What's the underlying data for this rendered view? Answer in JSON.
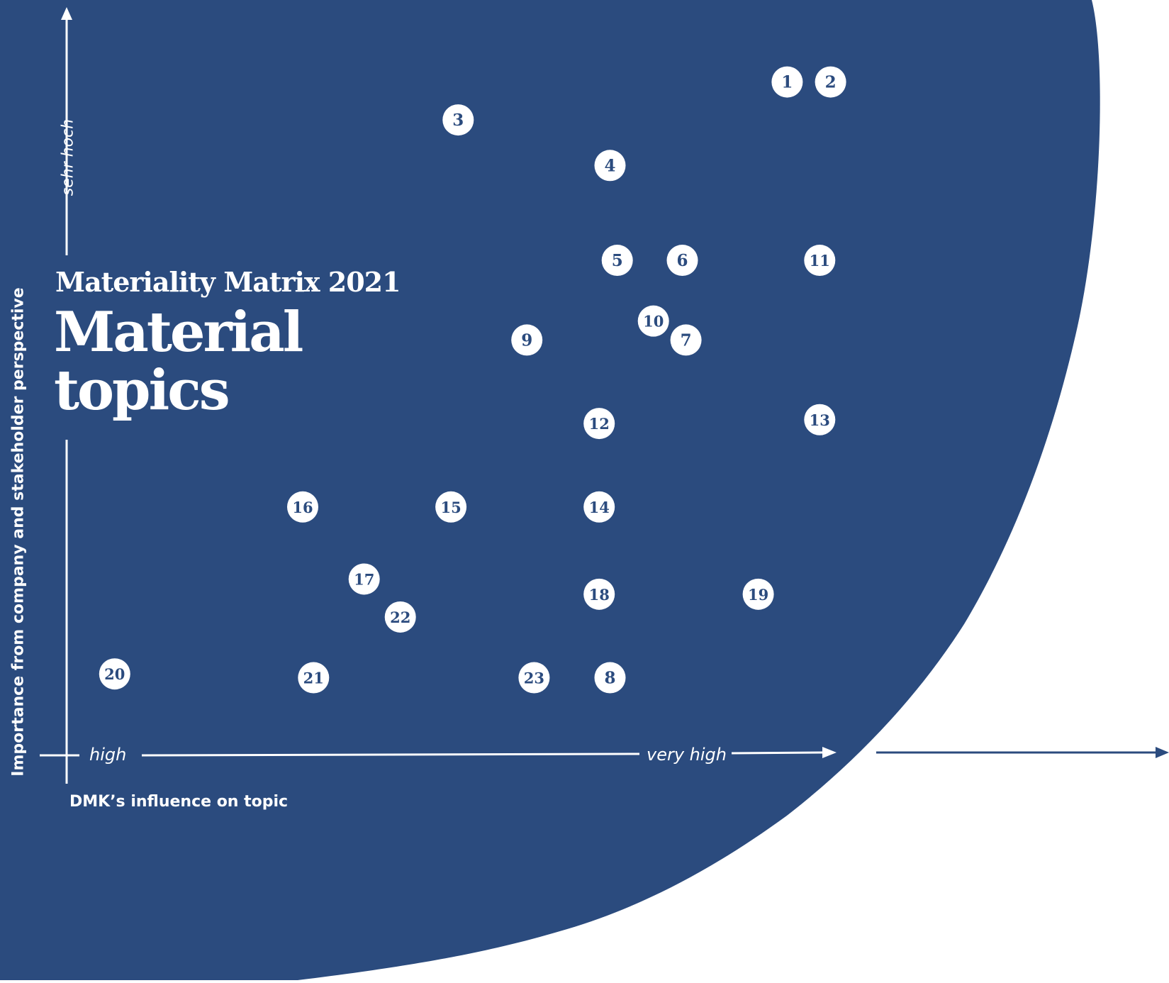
{
  "colors": {
    "background_shape": "#2b4b7e",
    "marker_fill": "#ffffff",
    "marker_text": "#2b4b7e",
    "axis": "#ffffff",
    "outer_arrow": "#2b4b7e"
  },
  "chart_data": {
    "type": "scatter",
    "subtitle": "Materiality Matrix 2021",
    "title": "Material topics",
    "xlabel": "DMK’s influence on topic",
    "ylabel": "Importance from company and stakeholder perspective",
    "x_ticks": [
      "high",
      "very high"
    ],
    "y_ticks": [
      "sehr hoch"
    ],
    "xlim": [
      0,
      100
    ],
    "ylim": [
      0,
      100
    ],
    "grid": false,
    "legend": "none",
    "points": [
      {
        "label": "1",
        "x": 97.0,
        "y": 92.0
      },
      {
        "label": "2",
        "x": 103.0,
        "y": 92.0
      },
      {
        "label": "3",
        "x": 51.5,
        "y": 87.0
      },
      {
        "label": "4",
        "x": 72.5,
        "y": 81.0
      },
      {
        "label": "5",
        "x": 73.5,
        "y": 68.5
      },
      {
        "label": "6",
        "x": 82.5,
        "y": 68.5
      },
      {
        "label": "7",
        "x": 83.0,
        "y": 58.0
      },
      {
        "label": "8",
        "x": 72.5,
        "y": 13.5
      },
      {
        "label": "9",
        "x": 61.0,
        "y": 58.0
      },
      {
        "label": "10",
        "x": 78.5,
        "y": 60.5
      },
      {
        "label": "11",
        "x": 101.5,
        "y": 68.5
      },
      {
        "label": "12",
        "x": 71.0,
        "y": 47.0
      },
      {
        "label": "13",
        "x": 101.5,
        "y": 47.5
      },
      {
        "label": "14",
        "x": 71.0,
        "y": 36.0
      },
      {
        "label": "15",
        "x": 50.5,
        "y": 36.0
      },
      {
        "label": "16",
        "x": 30.0,
        "y": 36.0
      },
      {
        "label": "17",
        "x": 38.5,
        "y": 26.5
      },
      {
        "label": "18",
        "x": 71.0,
        "y": 24.5
      },
      {
        "label": "19",
        "x": 93.0,
        "y": 24.5
      },
      {
        "label": "20",
        "x": 4.0,
        "y": 14.0
      },
      {
        "label": "21",
        "x": 31.5,
        "y": 13.5
      },
      {
        "label": "22",
        "x": 43.5,
        "y": 21.5
      },
      {
        "label": "23",
        "x": 62.0,
        "y": 13.5
      }
    ]
  }
}
